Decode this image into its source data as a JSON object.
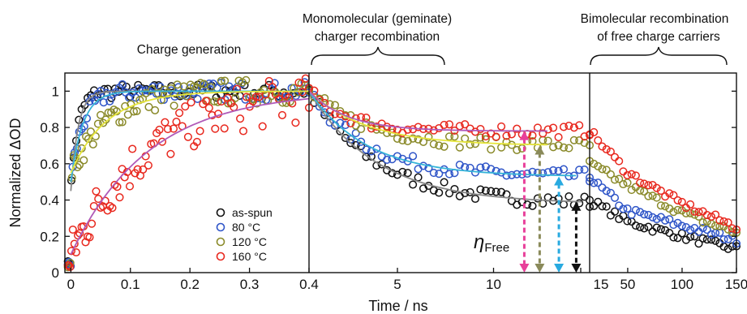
{
  "chart_data": {
    "type": "scatter",
    "xlabel": "Time / ns",
    "ylabel": "Normalized ΔOD",
    "ylim": [
      0,
      1.1
    ],
    "yticks": [
      "0",
      "0.2",
      "0.4",
      "0.6",
      "0.8",
      "1"
    ],
    "grid": false,
    "legend_position": "lower-left of first panel",
    "annotations": {
      "charge_generation": "Charge generation",
      "monomolecular": [
        "Monomolecular (geminate)",
        "charger recombination"
      ],
      "bimolecular": [
        "Bimolecular  recombination",
        "of free charge carriers"
      ],
      "eta_symbol": "η",
      "eta_subscript": "Free"
    },
    "panels": [
      {
        "xlim": [
          -0.01,
          0.4
        ],
        "xticks": [
          "0",
          "0.1",
          "0.2",
          "0.3",
          "0.4"
        ]
      },
      {
        "xlim": [
          0.4,
          15
        ],
        "xticks": [
          "5",
          "10",
          "15"
        ]
      },
      {
        "xlim": [
          15,
          150
        ],
        "xticks": [
          "50",
          "100",
          "150"
        ]
      }
    ],
    "series": [
      {
        "name": "as-spun",
        "color": "#111111",
        "rise_tau": 0.012,
        "rise_start": 0.45,
        "p2_plateau": 0.38,
        "p2_tau": 3.5,
        "p3": [
          [
            15,
            0.4
          ],
          [
            50,
            0.28
          ],
          [
            100,
            0.2
          ],
          [
            150,
            0.13
          ]
        ]
      },
      {
        "name": "80 °C",
        "color": "#2f55c8",
        "rise_tau": 0.02,
        "rise_start": 0.5,
        "p2_plateau": 0.53,
        "p2_tau": 3.0,
        "p3": [
          [
            15,
            0.52
          ],
          [
            50,
            0.34
          ],
          [
            100,
            0.26
          ],
          [
            150,
            0.18
          ]
        ]
      },
      {
        "name": "120 °C",
        "color": "#8a8a2a",
        "rise_tau": 0.06,
        "rise_start": 0.55,
        "p2_plateau": 0.7,
        "p2_tau": 3.0,
        "p3": [
          [
            15,
            0.6
          ],
          [
            50,
            0.48
          ],
          [
            100,
            0.33
          ],
          [
            150,
            0.22
          ]
        ]
      },
      {
        "name": "160 °C",
        "color": "#e8281e",
        "rise_tau": 0.13,
        "rise_start": 0.1,
        "p2_plateau": 0.78,
        "p2_tau": 2.0,
        "p3": [
          [
            15,
            0.78
          ],
          [
            50,
            0.55
          ],
          [
            100,
            0.38
          ],
          [
            150,
            0.25
          ]
        ]
      }
    ],
    "fits": [
      {
        "name": "as-spun fit",
        "color": "#888888"
      },
      {
        "name": "80 °C fit",
        "color": "#36b4d8"
      },
      {
        "name": "120 °C fit",
        "color": "#e6e63c"
      },
      {
        "name": "160 °C fit",
        "color": "#b05ab8"
      }
    ],
    "eta_arrows": [
      {
        "series": "160 °C",
        "x": 11.6,
        "value": 0.78,
        "color": "#e8409a"
      },
      {
        "series": "120 °C",
        "x": 12.4,
        "value": 0.7,
        "color": "#8a8a5a"
      },
      {
        "series": "80 °C",
        "x": 13.4,
        "value": 0.53,
        "color": "#28aae0"
      },
      {
        "series": "as-spun",
        "x": 14.3,
        "value": 0.39,
        "color": "#111111"
      }
    ]
  }
}
